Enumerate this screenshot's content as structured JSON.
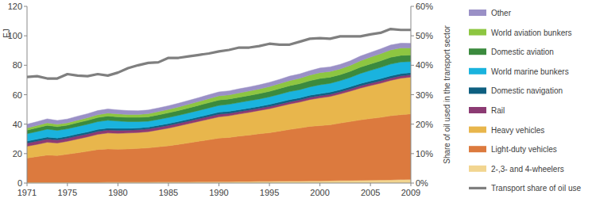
{
  "chart_data": {
    "type": "area",
    "stacked": true,
    "grid": false,
    "legend": "right",
    "y_label": "EJ",
    "y2_label": "Share of oil used in the transport sector",
    "x": [
      1971,
      1972,
      1973,
      1974,
      1975,
      1976,
      1977,
      1978,
      1979,
      1980,
      1981,
      1982,
      1983,
      1984,
      1985,
      1986,
      1987,
      1988,
      1989,
      1990,
      1991,
      1992,
      1993,
      1994,
      1995,
      1996,
      1997,
      1998,
      1999,
      2000,
      2001,
      2002,
      2003,
      2004,
      2005,
      2006,
      2007,
      2008,
      2009
    ],
    "xlim": [
      1971,
      2009
    ],
    "xticks": [
      1971,
      1975,
      1980,
      1985,
      1990,
      1995,
      2000,
      2005,
      2009
    ],
    "ylim": [
      0,
      120
    ],
    "yticks": [
      0,
      20,
      40,
      60,
      80,
      100,
      120
    ],
    "y2lim": [
      0,
      60
    ],
    "y2ticks": [
      {
        "value": 0,
        "label": "0%"
      },
      {
        "value": 10,
        "label": "10%"
      },
      {
        "value": 20,
        "label": "20%"
      },
      {
        "value": 30,
        "label": "30%"
      },
      {
        "value": 40,
        "label": "40%"
      },
      {
        "value": 50,
        "label": "50%"
      },
      {
        "value": 60,
        "label": "60%"
      }
    ],
    "series": [
      {
        "name": "2-,3- and 4-wheelers",
        "color": "#f2d590",
        "values": [
          0.5,
          0.5,
          0.5,
          0.5,
          0.6,
          0.6,
          0.6,
          0.6,
          0.7,
          0.7,
          0.7,
          0.7,
          0.7,
          0.8,
          0.8,
          0.8,
          0.8,
          0.9,
          0.9,
          1.0,
          1.0,
          1.1,
          1.1,
          1.2,
          1.2,
          1.3,
          1.4,
          1.4,
          1.5,
          1.5,
          1.6,
          1.7,
          1.8,
          1.9,
          2.0,
          2.1,
          2.2,
          2.4,
          2.5
        ]
      },
      {
        "name": "Light-duty vehicles",
        "color": "#dc7a3e",
        "values": [
          16.5,
          17.5,
          18.5,
          18.2,
          19.0,
          20.0,
          21.0,
          22.2,
          22.5,
          22.3,
          22.5,
          22.8,
          23.2,
          23.8,
          24.5,
          25.5,
          26.5,
          27.5,
          28.5,
          29.5,
          30.0,
          30.8,
          31.5,
          32.3,
          33.0,
          34.0,
          35.0,
          36.0,
          37.0,
          37.5,
          38.0,
          39.0,
          40.0,
          41.0,
          41.8,
          42.5,
          43.5,
          44.0,
          44.5
        ]
      },
      {
        "name": "Heavy vehicles",
        "color": "#e8b64c",
        "values": [
          8.0,
          8.3,
          8.7,
          8.5,
          8.8,
          9.3,
          9.8,
          10.3,
          10.8,
          10.8,
          10.8,
          10.8,
          11.0,
          11.5,
          12.0,
          12.5,
          13.0,
          13.5,
          14.0,
          14.5,
          14.7,
          15.0,
          15.4,
          15.8,
          16.3,
          16.8,
          17.3,
          17.6,
          18.2,
          18.8,
          19.2,
          19.8,
          20.6,
          21.6,
          22.4,
          23.2,
          24.0,
          24.8,
          25.0
        ]
      },
      {
        "name": "Rail",
        "color": "#8c3b73",
        "values": [
          2.2,
          2.2,
          2.2,
          2.1,
          2.1,
          2.1,
          2.0,
          2.0,
          2.0,
          2.0,
          1.9,
          1.9,
          1.9,
          1.9,
          1.9,
          1.8,
          1.8,
          1.8,
          1.8,
          1.8,
          1.7,
          1.6,
          1.6,
          1.5,
          1.5,
          1.5,
          1.5,
          1.5,
          1.5,
          1.5,
          1.5,
          1.5,
          1.5,
          1.6,
          1.6,
          1.6,
          1.6,
          1.6,
          1.6
        ]
      },
      {
        "name": "Domestic navigation",
        "color": "#0e5f80",
        "values": [
          1.3,
          1.3,
          1.3,
          1.3,
          1.3,
          1.3,
          1.3,
          1.3,
          1.3,
          1.3,
          1.2,
          1.2,
          1.2,
          1.2,
          1.2,
          1.2,
          1.2,
          1.2,
          1.3,
          1.3,
          1.3,
          1.3,
          1.3,
          1.3,
          1.4,
          1.4,
          1.4,
          1.4,
          1.4,
          1.4,
          1.4,
          1.4,
          1.5,
          1.5,
          1.5,
          1.5,
          1.5,
          1.5,
          1.4
        ]
      },
      {
        "name": "World marine bunkers",
        "color": "#1ab3de",
        "values": [
          5.0,
          5.2,
          5.4,
          5.2,
          5.0,
          5.1,
          5.2,
          5.3,
          5.3,
          5.0,
          4.6,
          4.3,
          4.0,
          4.0,
          4.1,
          4.2,
          4.3,
          4.4,
          4.5,
          4.6,
          4.8,
          4.9,
          5.0,
          5.0,
          5.1,
          5.3,
          5.5,
          5.5,
          5.7,
          6.0,
          6.0,
          6.1,
          6.3,
          6.8,
          7.2,
          7.6,
          8.0,
          7.9,
          7.5
        ]
      },
      {
        "name": "Domestic aviation",
        "color": "#3b8a3e",
        "values": [
          2.4,
          2.5,
          2.6,
          2.5,
          2.5,
          2.6,
          2.7,
          2.8,
          2.9,
          2.9,
          2.9,
          2.9,
          3.0,
          3.1,
          3.2,
          3.3,
          3.4,
          3.5,
          3.6,
          3.7,
          3.6,
          3.6,
          3.6,
          3.7,
          3.8,
          3.9,
          4.0,
          4.1,
          4.2,
          4.3,
          4.2,
          4.1,
          4.2,
          4.3,
          4.4,
          4.5,
          4.6,
          4.5,
          4.4
        ]
      },
      {
        "name": "World aviation bunkers",
        "color": "#8dc641",
        "values": [
          1.5,
          1.6,
          1.7,
          1.6,
          1.6,
          1.7,
          1.8,
          1.9,
          2.0,
          2.0,
          2.0,
          2.0,
          2.1,
          2.2,
          2.3,
          2.4,
          2.5,
          2.6,
          2.7,
          2.8,
          2.8,
          2.9,
          3.0,
          3.1,
          3.2,
          3.3,
          3.5,
          3.6,
          3.8,
          4.0,
          3.9,
          3.9,
          4.0,
          4.3,
          4.6,
          4.8,
          5.0,
          5.0,
          4.8
        ]
      },
      {
        "name": "Other",
        "color": "#9a90c6",
        "values": [
          2.5,
          2.6,
          2.7,
          2.6,
          2.6,
          2.7,
          2.7,
          2.8,
          2.8,
          2.7,
          2.6,
          2.5,
          2.5,
          2.5,
          2.5,
          2.5,
          2.6,
          2.6,
          2.7,
          2.7,
          2.7,
          2.8,
          2.8,
          2.8,
          2.9,
          2.9,
          3.0,
          3.0,
          3.0,
          3.1,
          3.1,
          3.1,
          3.1,
          3.2,
          3.2,
          3.3,
          3.3,
          3.3,
          3.2
        ]
      },
      {
        "name": "Transport share of oil use",
        "color": "#7f7f7f",
        "type": "line",
        "axis": "y2",
        "values": [
          36,
          36.3,
          35.5,
          35.5,
          37,
          36.5,
          36.3,
          37,
          36.5,
          37.5,
          39,
          40,
          40.8,
          41,
          42.5,
          42.5,
          43,
          43.5,
          44,
          44.7,
          45.2,
          46,
          46,
          46.5,
          47.3,
          47,
          47,
          48,
          49,
          49.2,
          49,
          49.8,
          49.8,
          49.8,
          50.5,
          51,
          52.3,
          52,
          52
        ]
      }
    ]
  }
}
